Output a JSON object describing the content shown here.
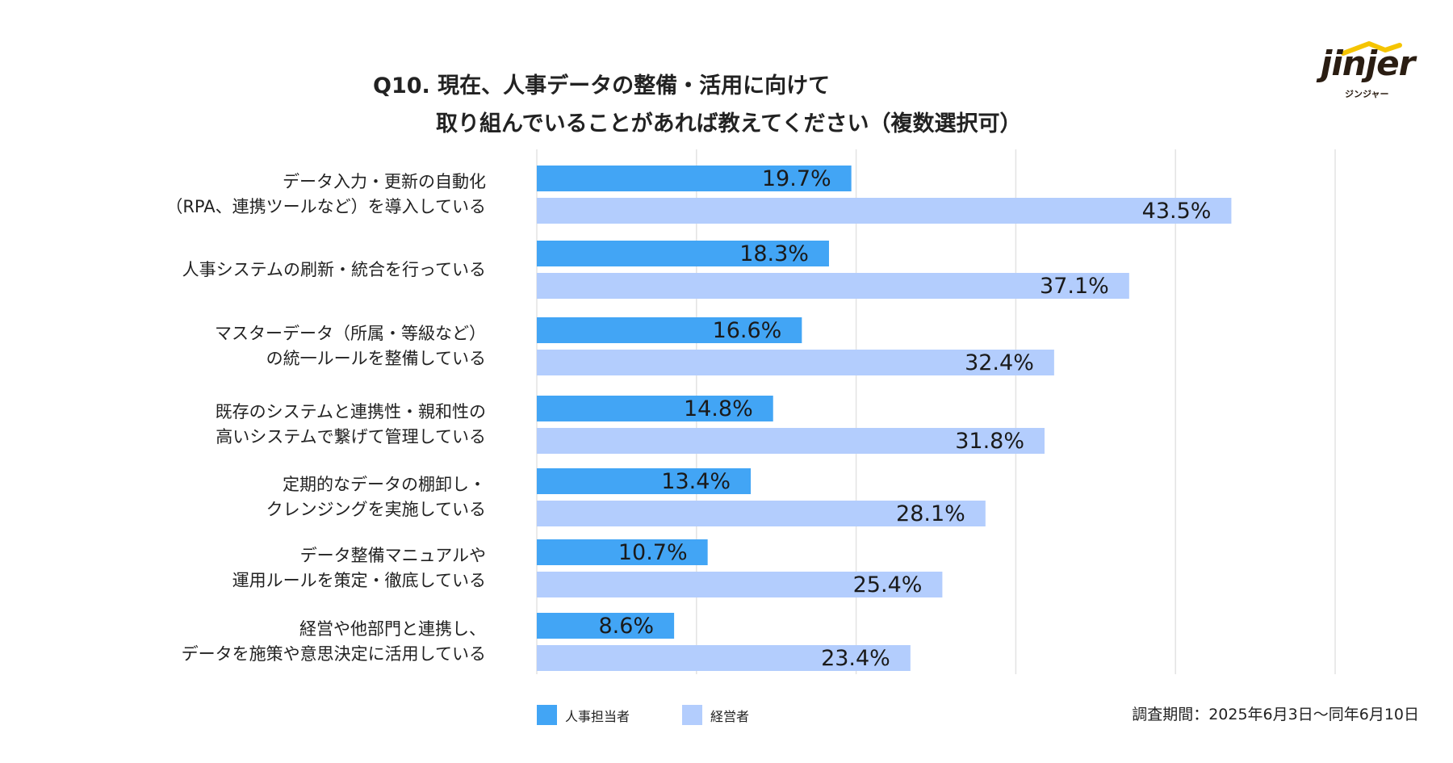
{
  "header": {
    "title_line1": "Q10. 現在、人事データの整備・活用に向けて",
    "title_line2": "取り組んでいることがあれば教えてください（複数選択可）"
  },
  "logo": {
    "wordmark": "jinjer",
    "kana": "ジンジャー",
    "color": "#2a1d12",
    "accent": "#f5c400"
  },
  "chart_data": {
    "type": "bar",
    "orientation": "horizontal",
    "title": "Q10. 現在、人事データの整備・活用に向けて 取り組んでいることがあれば教えてください（複数選択可）",
    "categories": [
      [
        "データ入力・更新の自動化",
        "（RPA、連携ツールなど）を導入している"
      ],
      [
        "人事システムの刷新・統合を行っている"
      ],
      [
        "マスターデータ（所属・等級など）",
        "の統一ルールを整備している"
      ],
      [
        "既存のシステムと連携性・親和性の",
        "高いシステムで繋げて管理している"
      ],
      [
        "定期的なデータの棚卸し・",
        "クレンジングを実施している"
      ],
      [
        "データ整備マニュアルや",
        "運用ルールを策定・徹底している"
      ],
      [
        "経営や他部門と連携し、",
        "データを施策や意思決定に活用している"
      ]
    ],
    "series": [
      {
        "name": "人事担当者",
        "color": "#42a5f5",
        "values": [
          19.7,
          18.3,
          16.6,
          14.8,
          13.4,
          10.7,
          8.6
        ],
        "labels": [
          "19.7%",
          "18.3%",
          "16.6%",
          "14.8%",
          "13.4%",
          "10.7%",
          "8.6%"
        ]
      },
      {
        "name": "経営者",
        "color": "#b3cdfd",
        "values": [
          43.5,
          37.1,
          32.4,
          31.8,
          28.1,
          25.4,
          23.4
        ],
        "labels": [
          "43.5%",
          "37.1%",
          "32.4%",
          "31.8%",
          "28.1%",
          "25.4%",
          "23.4%"
        ]
      }
    ],
    "xlim": [
      0,
      50
    ],
    "grid": true,
    "legend": "bottom-left"
  },
  "footer": {
    "survey_period": "調査期間：2025年6月3日〜同年6月10日"
  }
}
